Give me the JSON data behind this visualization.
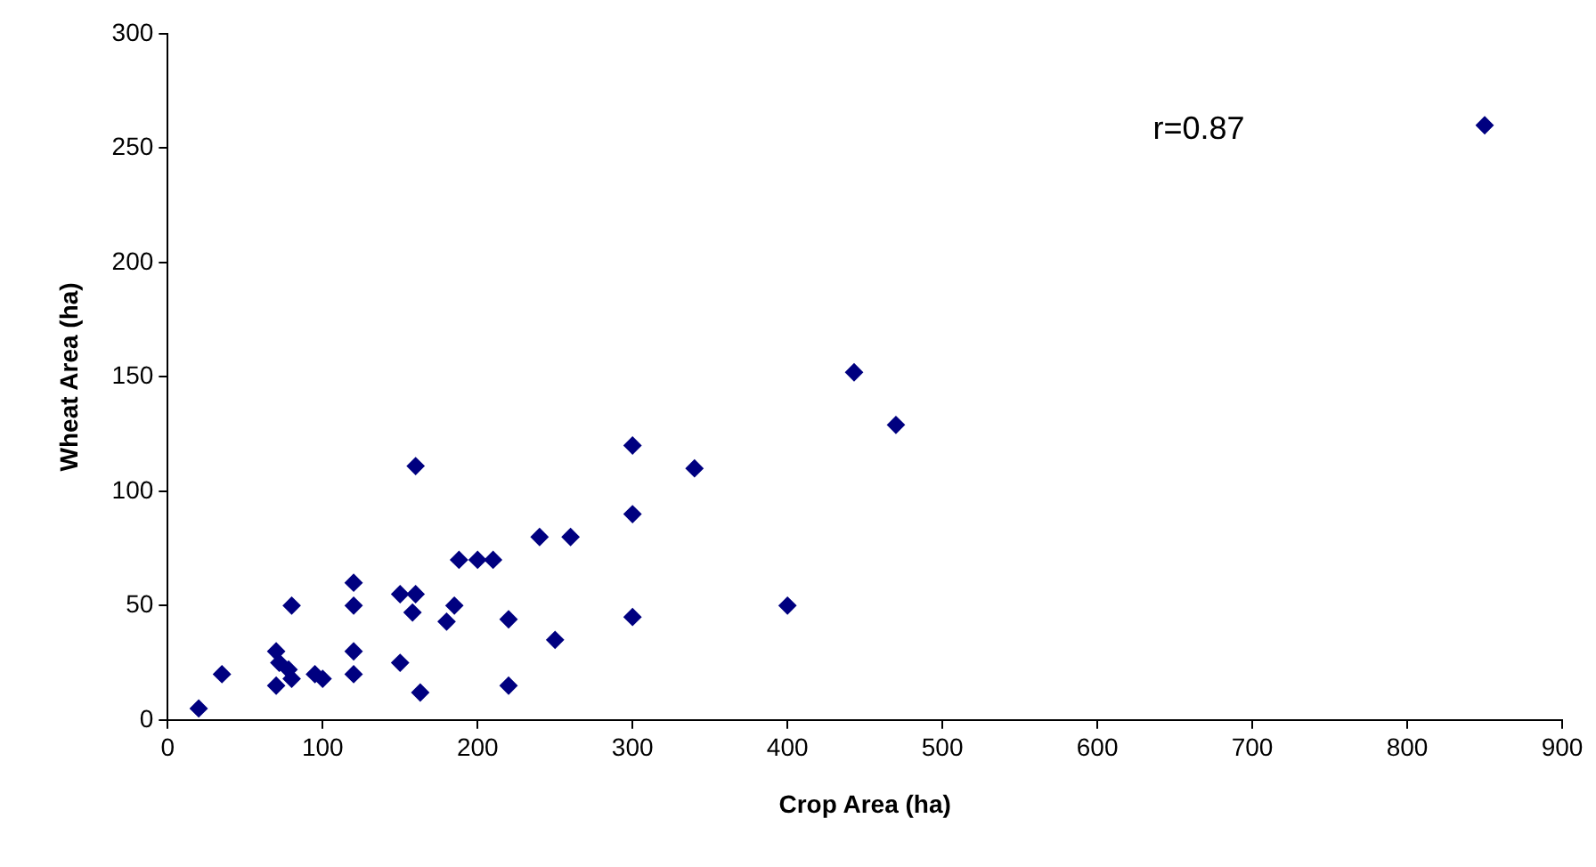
{
  "chart_data": {
    "type": "scatter",
    "xlabel": "Crop Area (ha)",
    "ylabel": "Wheat Area (ha)",
    "x": [
      20,
      35,
      70,
      72,
      70,
      80,
      78,
      80,
      95,
      100,
      120,
      120,
      120,
      120,
      150,
      160,
      150,
      158,
      160,
      163,
      180,
      185,
      188,
      200,
      210,
      220,
      220,
      240,
      250,
      260,
      300,
      300,
      300,
      340,
      400,
      443,
      470,
      850
    ],
    "series": [
      {
        "color": "#000080",
        "values": [
          5,
          20,
          30,
          25,
          15,
          18,
          22,
          50,
          20,
          18,
          60,
          50,
          30,
          20,
          55,
          55,
          25,
          47,
          111,
          12,
          43,
          50,
          70,
          70,
          70,
          44,
          15,
          80,
          35,
          80,
          120,
          90,
          45,
          110,
          50,
          152,
          129,
          260
        ]
      }
    ],
    "xlim": [
      0,
      900
    ],
    "xticks": [
      0,
      100,
      200,
      300,
      400,
      500,
      600,
      700,
      800,
      900
    ],
    "ylim": [
      0,
      300
    ],
    "yticks": [
      0,
      50,
      100,
      150,
      200,
      250,
      300
    ],
    "annotations": [
      "r=0.87"
    ],
    "marker": "diamond",
    "grid": false,
    "legend": false
  }
}
